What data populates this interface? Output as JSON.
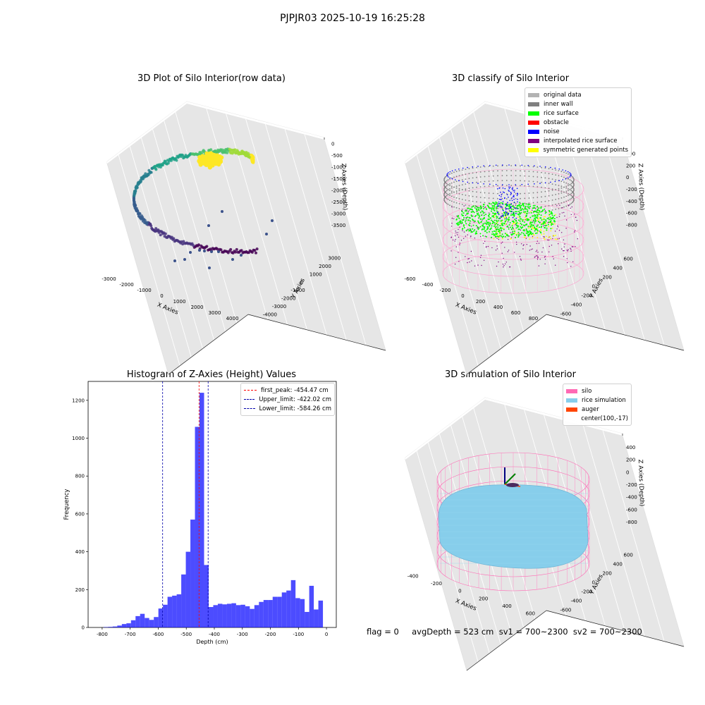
{
  "figure_title": "PJPJR03 2025-10-19 16:25:28",
  "footer": "flag = 0     avgDepth = 523 cm  sv1 = 700~2300  sv2 = 700~2300",
  "chart_data": [
    {
      "type": "scatter",
      "title": "3D Plot of Silo Interior(row data)",
      "xlabel": "X Axies",
      "ylabel": "Y Axies",
      "zlabel": "Z Axies (Depth)",
      "x_ticks": [
        "-3000",
        "-2000",
        "-1000",
        "0",
        "1000",
        "2000",
        "3000",
        "4000"
      ],
      "y_ticks": [
        "-4000",
        "-3000",
        "-2000",
        "-1000",
        "0",
        "1000",
        "2000",
        "3000"
      ],
      "z_ticks": [
        "0",
        "-500",
        "-1000",
        "-1500",
        "-2000",
        "-2500",
        "-3000",
        "-3500"
      ],
      "colormap": "viridis"
    },
    {
      "type": "scatter",
      "title": "3D classify of Silo Interior",
      "xlabel": "X Axies",
      "ylabel": "Y Axies",
      "zlabel": "Z Axies (Depth)",
      "x_ticks": [
        "-600",
        "-400",
        "-200",
        "0",
        "200",
        "400",
        "600",
        "800"
      ],
      "y_ticks": [
        "-600",
        "-400",
        "-200",
        "0",
        "200",
        "400",
        "600"
      ],
      "z_ticks": [
        "400",
        "200",
        "0",
        "-200",
        "-400",
        "-600",
        "-800"
      ],
      "legend": [
        {
          "label": "original data",
          "color": "#b3b3b3"
        },
        {
          "label": "inner wall",
          "color": "#808080"
        },
        {
          "label": "rice surface",
          "color": "#00ff00"
        },
        {
          "label": "obstacle",
          "color": "#ff0000"
        },
        {
          "label": "noise",
          "color": "#0000ff"
        },
        {
          "label": "interpolated rice surface",
          "color": "#800080"
        },
        {
          "label": "symmetric generated points",
          "color": "#ffff00"
        }
      ]
    },
    {
      "type": "bar",
      "title": "Histogram of Z-Axies (Height) Values",
      "xlabel": "Depth (cm)",
      "ylabel": "Frequency",
      "xlim": [
        -850,
        35
      ],
      "ylim": [
        0,
        1300
      ],
      "x_ticks": [
        -800,
        -700,
        -600,
        -500,
        -400,
        -300,
        -200,
        -100,
        0
      ],
      "y_ticks": [
        0,
        200,
        400,
        600,
        800,
        1000,
        1200
      ],
      "bar_color": "#0000ff",
      "bin_width": 16.3,
      "bin_starts": [
        -795,
        -778.7,
        -762.4,
        -746.1,
        -729.8,
        -713.5,
        -697.2,
        -680.9,
        -664.6,
        -648.3,
        -632,
        -615.7,
        -599.4,
        -583.1,
        -566.8,
        -550.5,
        -534.2,
        -517.9,
        -501.6,
        -485.3,
        -469,
        -452.7,
        -436.4,
        -420.1,
        -403.8,
        -387.5,
        -371.2,
        -354.9,
        -338.6,
        -322.3,
        -306,
        -289.7,
        -273.4,
        -257.1,
        -240.8,
        -224.5,
        -208.2,
        -191.9,
        -175.6,
        -159.3,
        -143,
        -126.7,
        -110.4,
        -94.1,
        -77.8,
        -61.5,
        -45.2,
        -28.9,
        -12.6
      ],
      "values": [
        2,
        3,
        5,
        10,
        18,
        22,
        38,
        60,
        72,
        50,
        40,
        55,
        100,
        120,
        162,
        168,
        175,
        280,
        400,
        570,
        1060,
        1240,
        330,
        108,
        118,
        125,
        122,
        125,
        128,
        118,
        120,
        112,
        98,
        118,
        135,
        145,
        145,
        162,
        162,
        185,
        195,
        250,
        155,
        150,
        82,
        220,
        95,
        142,
        0
      ],
      "lines": [
        {
          "label": "first_peak: -454.47 cm",
          "x": -454.47,
          "color": "#ff0000"
        },
        {
          "label": "Upper_limit: -422.02 cm",
          "x": -422.02,
          "color": "#0000aa"
        },
        {
          "label": "Lower_limit: -584.26 cm",
          "x": -584.26,
          "color": "#0000aa"
        }
      ]
    },
    {
      "type": "scatter",
      "title": "3D simulation of Silo Interior",
      "xlabel": "X Axies",
      "ylabel": "Y Axies",
      "zlabel": "Z Axies (Depth)",
      "x_ticks": [
        "-400",
        "-200",
        "0",
        "200",
        "400",
        "600"
      ],
      "y_ticks": [
        "-600",
        "-400",
        "-200",
        "0",
        "200",
        "400",
        "600"
      ],
      "z_ticks": [
        "400",
        "200",
        "0",
        "-200",
        "-400",
        "-600",
        "-800"
      ],
      "legend": [
        {
          "label": "silo",
          "color": "#ff69b4"
        },
        {
          "label": "rice simulation",
          "color": "#87ceeb"
        },
        {
          "label": "auger",
          "color": "#ff4500"
        },
        {
          "label": "center(100,-17)",
          "color": ""
        }
      ]
    }
  ]
}
